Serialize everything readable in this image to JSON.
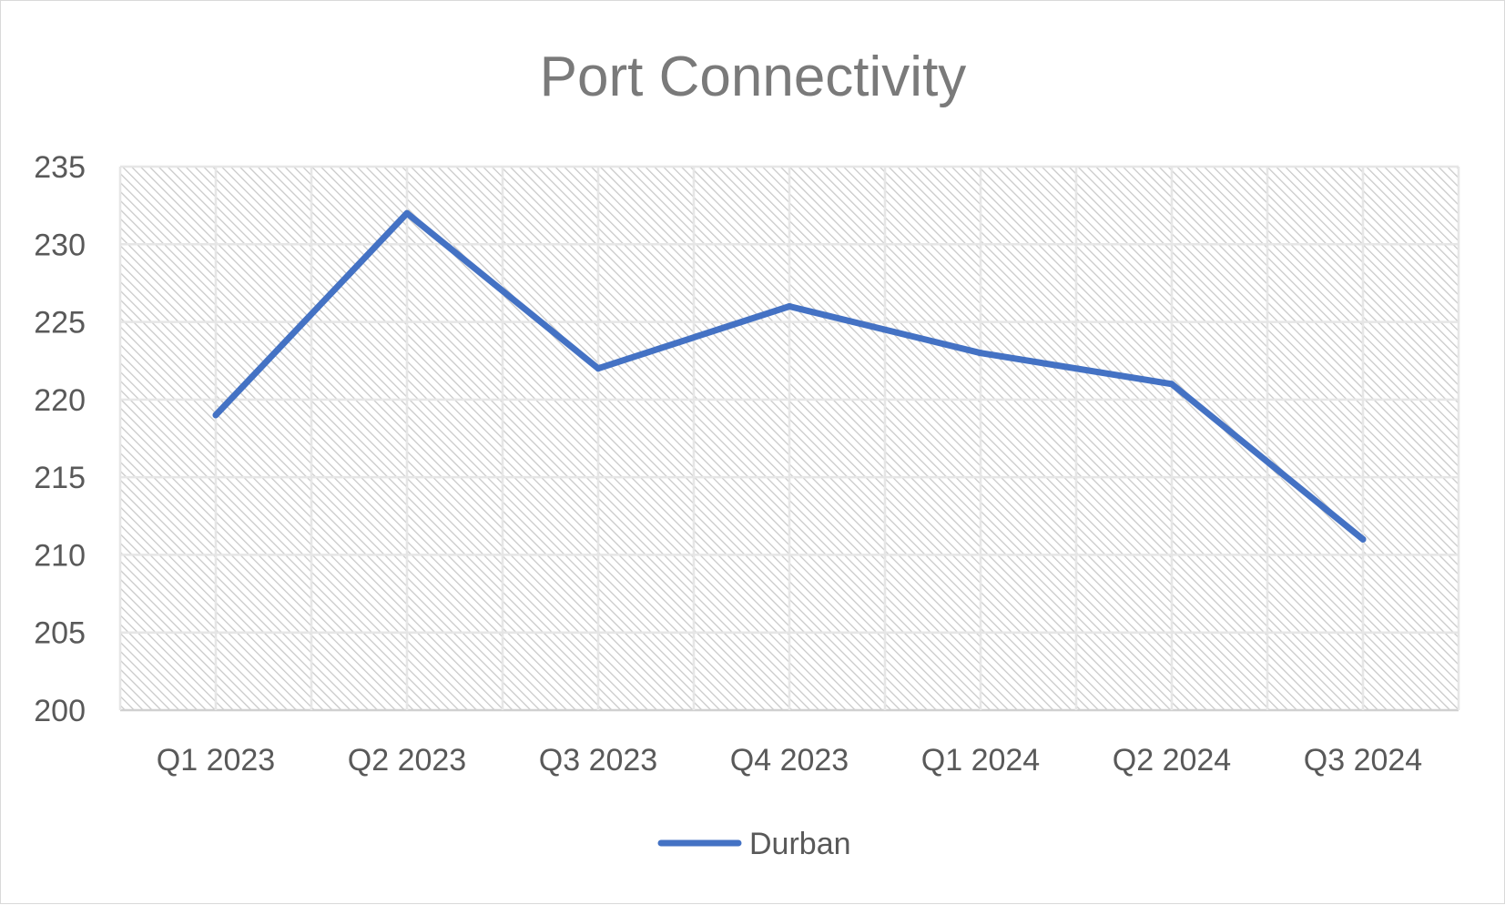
{
  "chart_data": {
    "type": "line",
    "title": "Port Connectivity",
    "xlabel": "",
    "ylabel": "",
    "categories": [
      "Q1 2023",
      "Q2 2023",
      "Q3 2023",
      "Q4 2023",
      "Q1 2024",
      "Q2 2024",
      "Q3 2024"
    ],
    "series": [
      {
        "name": "Durban",
        "values": [
          219,
          232,
          222,
          226,
          223,
          221,
          211
        ],
        "color": "#4472c4"
      }
    ],
    "ylim": [
      200,
      235
    ],
    "yticks": [
      200,
      205,
      210,
      215,
      220,
      225,
      230,
      235
    ],
    "grid": true,
    "plot_background": "diagonal-hatch",
    "legend_position": "bottom"
  }
}
